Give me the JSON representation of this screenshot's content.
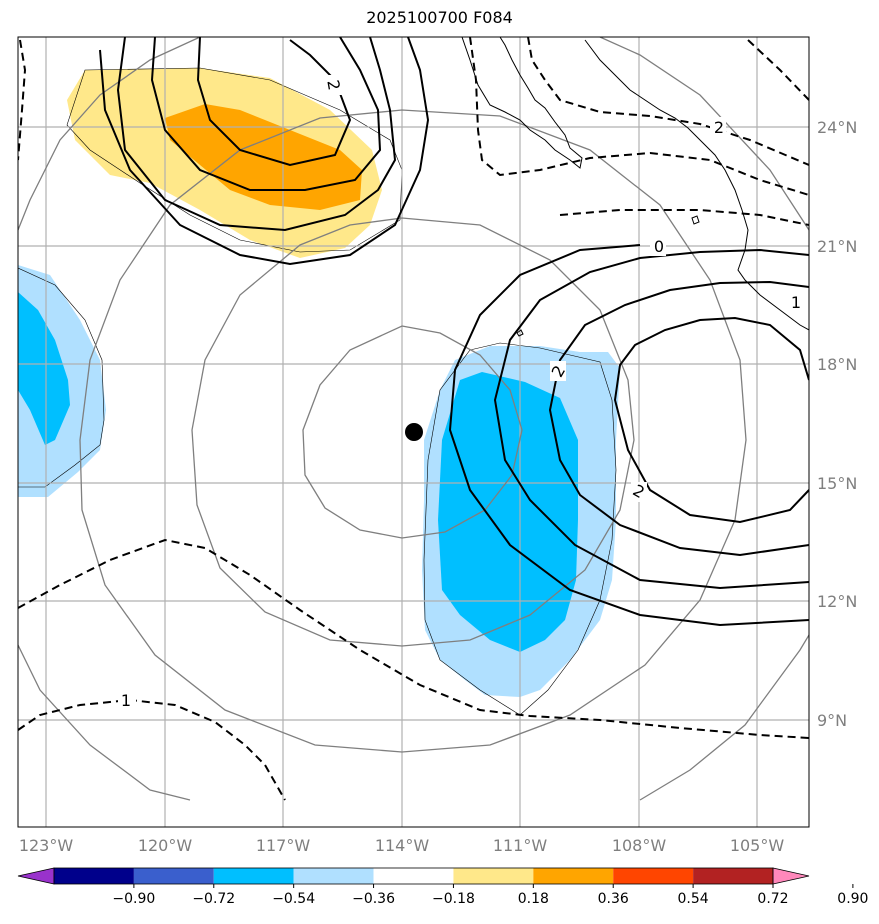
{
  "title": "2025100700 F084",
  "lon_labels": [
    "123°W",
    "120°W",
    "117°W",
    "114°W",
    "111°W",
    "108°W",
    "105°W"
  ],
  "lat_labels": [
    "24°N",
    "21°N",
    "18°N",
    "15°N",
    "12°N",
    "9°N"
  ],
  "colorbar": {
    "ticks": [
      "−0.90",
      "−0.72",
      "−0.54",
      "−0.36",
      "−0.18",
      "0.18",
      "0.36",
      "0.54",
      "0.72",
      "0.90"
    ],
    "colors": [
      "#9932cc",
      "#00008b",
      "#3a5fcd",
      "#00bfff",
      "#b0e0ff",
      "#ffffff",
      "#ffe88a",
      "#ffa500",
      "#ff4500",
      "#b22222",
      "#ff88bb"
    ]
  },
  "contour_labels": {
    "a": "2",
    "b": "2",
    "c": "0",
    "d": "1",
    "e": "2",
    "f": "2",
    "g": "1"
  },
  "styles": {
    "positive_fill": "#ffe88a",
    "strong_positive_fill": "#ffa500",
    "negative_fill": "#b0e0ff",
    "strong_negative_fill": "#00bfff",
    "contour_color": "#000000",
    "circle_color": "#7f7f7f",
    "grid_color": "#b0b0b0"
  }
}
